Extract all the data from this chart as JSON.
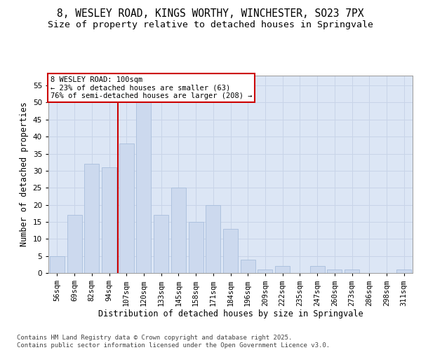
{
  "title_line1": "8, WESLEY ROAD, KINGS WORTHY, WINCHESTER, SO23 7PX",
  "title_line2": "Size of property relative to detached houses in Springvale",
  "xlabel": "Distribution of detached houses by size in Springvale",
  "ylabel": "Number of detached properties",
  "categories": [
    "56sqm",
    "69sqm",
    "82sqm",
    "94sqm",
    "107sqm",
    "120sqm",
    "133sqm",
    "145sqm",
    "158sqm",
    "171sqm",
    "184sqm",
    "196sqm",
    "209sqm",
    "222sqm",
    "235sqm",
    "247sqm",
    "260sqm",
    "273sqm",
    "286sqm",
    "298sqm",
    "311sqm"
  ],
  "values": [
    5,
    17,
    32,
    31,
    38,
    50,
    17,
    25,
    15,
    20,
    13,
    4,
    1,
    2,
    0,
    2,
    1,
    1,
    0,
    0,
    1
  ],
  "bar_color": "#ccd9ee",
  "bar_edge_color": "#a8bedc",
  "bar_width": 0.85,
  "ylim": [
    0,
    58
  ],
  "yticks": [
    0,
    5,
    10,
    15,
    20,
    25,
    30,
    35,
    40,
    45,
    50,
    55
  ],
  "vline_x": 3.5,
  "vline_color": "#cc0000",
  "annotation_text": "8 WESLEY ROAD: 100sqm\n← 23% of detached houses are smaller (63)\n76% of semi-detached houses are larger (208) →",
  "annotation_box_color": "#cc0000",
  "grid_color": "#c8d4e8",
  "background_color": "#dce6f5",
  "footer_text": "Contains HM Land Registry data © Crown copyright and database right 2025.\nContains public sector information licensed under the Open Government Licence v3.0.",
  "title_fontsize": 10.5,
  "subtitle_fontsize": 9.5,
  "axis_label_fontsize": 8.5,
  "tick_fontsize": 7.5,
  "annotation_fontsize": 7.5,
  "footer_fontsize": 6.5
}
